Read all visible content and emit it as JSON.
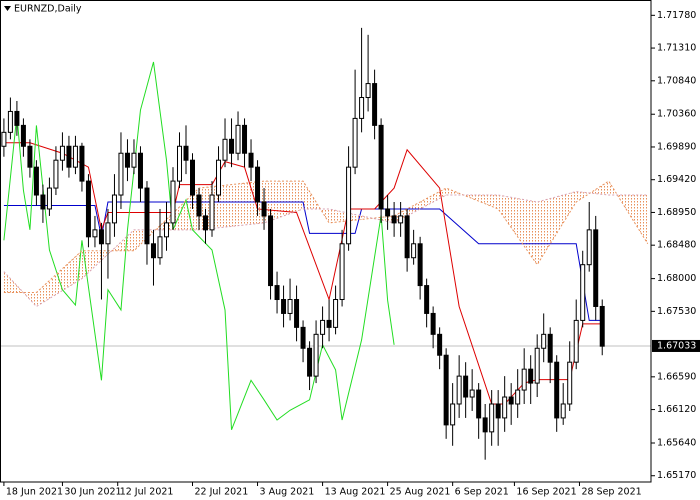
{
  "chart_data": {
    "type": "candlestick",
    "title": "EURNZD,Daily",
    "open": [
      1.699,
      1.701,
      1.704,
      1.702,
      1.699,
      1.696,
      1.692,
      1.69,
      1.693,
      1.697,
      1.699,
      1.696,
      1.699,
      1.694,
      1.686,
      1.687,
      1.685,
      1.688,
      1.692,
      1.698,
      1.696,
      1.698,
      1.693,
      1.685,
      1.683,
      1.686,
      1.688,
      1.694,
      1.699,
      1.697,
      1.692,
      1.689,
      1.687,
      1.692,
      1.697,
      1.7,
      1.698,
      1.702,
      1.698,
      1.696,
      1.691,
      1.689,
      1.679,
      1.677,
      1.675,
      1.677,
      1.673,
      1.67,
      1.666,
      1.672,
      1.674,
      1.673,
      1.677,
      1.685,
      1.696,
      1.703,
      1.706,
      1.708,
      1.702,
      1.69,
      1.689,
      1.688,
      1.689,
      1.683,
      1.685,
      1.679,
      1.675,
      1.672,
      1.669,
      1.659,
      1.662,
      1.666,
      1.663,
      1.664,
      1.66,
      1.658,
      1.662,
      1.66,
      1.663,
      1.662,
      1.664,
      1.667,
      1.665,
      1.67,
      1.672,
      1.668,
      1.66,
      1.662,
      1.668,
      1.674,
      1.682,
      1.687,
      1.676
    ],
    "high": [
      1.703,
      1.706,
      1.7055,
      1.703,
      1.7,
      1.697,
      1.6935,
      1.6945,
      1.699,
      1.701,
      1.7005,
      1.7005,
      1.6995,
      1.695,
      1.689,
      1.688,
      1.69,
      1.695,
      1.701,
      1.7,
      1.7,
      1.699,
      1.694,
      1.687,
      1.69,
      1.691,
      1.696,
      1.701,
      1.702,
      1.698,
      1.693,
      1.69,
      1.694,
      1.699,
      1.703,
      1.703,
      1.704,
      1.703,
      1.7,
      1.697,
      1.693,
      1.69,
      1.681,
      1.679,
      1.68,
      1.679,
      1.674,
      1.671,
      1.674,
      1.676,
      1.677,
      1.679,
      1.687,
      1.699,
      1.71,
      1.716,
      1.715,
      1.71,
      1.703,
      1.692,
      1.691,
      1.691,
      1.69,
      1.687,
      1.686,
      1.68,
      1.676,
      1.673,
      1.67,
      1.665,
      1.669,
      1.668,
      1.667,
      1.665,
      1.662,
      1.664,
      1.664,
      1.666,
      1.665,
      1.667,
      1.67,
      1.669,
      1.672,
      1.675,
      1.673,
      1.669,
      1.665,
      1.671,
      1.677,
      1.684,
      1.691,
      1.689,
      1.677
    ],
    "low": [
      1.6975,
      1.7,
      1.7005,
      1.6975,
      1.6945,
      1.6905,
      1.688,
      1.689,
      1.692,
      1.6955,
      1.6945,
      1.695,
      1.6925,
      1.6845,
      1.6845,
      1.677,
      1.68,
      1.686,
      1.69,
      1.694,
      1.695,
      1.691,
      1.682,
      1.679,
      1.682,
      1.684,
      1.687,
      1.693,
      1.695,
      1.69,
      1.687,
      1.685,
      1.686,
      1.691,
      1.696,
      1.696,
      1.697,
      1.696,
      1.694,
      1.689,
      1.687,
      1.677,
      1.675,
      1.673,
      1.674,
      1.671,
      1.668,
      1.664,
      1.665,
      1.67,
      1.671,
      1.672,
      1.676,
      1.684,
      1.695,
      1.701,
      1.704,
      1.7,
      1.688,
      1.687,
      1.686,
      1.686,
      1.681,
      1.682,
      1.677,
      1.673,
      1.67,
      1.667,
      1.657,
      1.656,
      1.66,
      1.66,
      1.661,
      1.657,
      1.654,
      1.656,
      1.656,
      1.658,
      1.659,
      1.66,
      1.662,
      1.662,
      1.663,
      1.668,
      1.665,
      1.658,
      1.659,
      1.661,
      1.667,
      1.673,
      1.681,
      1.674,
      1.669
    ],
    "close": [
      1.701,
      1.704,
      1.702,
      1.699,
      1.696,
      1.692,
      1.69,
      1.693,
      1.697,
      1.699,
      1.696,
      1.699,
      1.694,
      1.686,
      1.687,
      1.685,
      1.688,
      1.692,
      1.698,
      1.696,
      1.698,
      1.693,
      1.685,
      1.683,
      1.686,
      1.688,
      1.694,
      1.699,
      1.697,
      1.692,
      1.689,
      1.687,
      1.692,
      1.697,
      1.7,
      1.698,
      1.702,
      1.698,
      1.696,
      1.691,
      1.689,
      1.679,
      1.677,
      1.675,
      1.677,
      1.673,
      1.67,
      1.666,
      1.672,
      1.674,
      1.673,
      1.677,
      1.685,
      1.696,
      1.703,
      1.706,
      1.708,
      1.702,
      1.69,
      1.689,
      1.688,
      1.689,
      1.683,
      1.685,
      1.679,
      1.675,
      1.672,
      1.669,
      1.659,
      1.662,
      1.666,
      1.663,
      1.664,
      1.66,
      1.658,
      1.662,
      1.66,
      1.663,
      1.662,
      1.664,
      1.667,
      1.665,
      1.67,
      1.672,
      1.668,
      1.66,
      1.662,
      1.668,
      1.674,
      1.682,
      1.687,
      1.676,
      1.6703
    ],
    "bull_color": "#ffffff",
    "bear_color": "#000000",
    "xlim": [
      -0.6,
      99.5
    ],
    "ylim": [
      1.6508,
      1.72
    ],
    "xticks": [
      {
        "value": 0,
        "label": "18 Jun 2021"
      },
      {
        "value": 9,
        "label": "30 Jun 2021"
      },
      {
        "value": 17.5,
        "label": "12 Jul 2021"
      },
      {
        "value": 29,
        "label": "22 Jul 2021"
      },
      {
        "value": 39,
        "label": "3 Aug 2021"
      },
      {
        "value": 49,
        "label": "13 Aug 2021"
      },
      {
        "value": 59,
        "label": "25 Aug 2021"
      },
      {
        "value": 69,
        "label": "6 Sep 2021"
      },
      {
        "value": 78.5,
        "label": "16 Sep 2021"
      },
      {
        "value": 88.5,
        "label": "28 Sep 2021"
      }
    ],
    "yticks": [
      {
        "value": 1.7178,
        "label": "1.71780"
      },
      {
        "value": 1.7131,
        "label": "1.71310"
      },
      {
        "value": 1.7084,
        "label": "1.70840"
      },
      {
        "value": 1.7036,
        "label": "1.70360"
      },
      {
        "value": 1.6989,
        "label": "1.69890"
      },
      {
        "value": 1.6942,
        "label": "1.69420"
      },
      {
        "value": 1.6895,
        "label": "1.68950"
      },
      {
        "value": 1.6848,
        "label": "1.68480"
      },
      {
        "value": 1.68,
        "label": "1.68000"
      },
      {
        "value": 1.6753,
        "label": "1.67530"
      },
      {
        "value": 1.6659,
        "label": "1.66590"
      },
      {
        "value": 1.6612,
        "label": "1.66120"
      },
      {
        "value": 1.6564,
        "label": "1.65640"
      },
      {
        "value": 1.6517,
        "label": "1.65170"
      }
    ],
    "last_price": {
      "value": 1.67033,
      "label": "1.67033"
    },
    "cloud_color": "#e8905a",
    "overlays": [
      {
        "color": "#0000cc",
        "style": "solid",
        "x": [
          0,
          14,
          15,
          16,
          46,
          47,
          54,
          55,
          67,
          73,
          88,
          90,
          92
        ],
        "values": [
          1.6905,
          1.6905,
          1.686,
          1.691,
          1.691,
          1.6865,
          1.6865,
          1.69,
          1.69,
          1.685,
          1.685,
          1.674,
          1.674
        ]
      },
      {
        "color": "#dd0000",
        "style": "solid",
        "x": [
          0,
          4,
          9,
          13,
          15,
          16,
          26,
          27,
          32,
          34,
          37,
          39,
          45,
          50,
          53,
          57,
          60,
          62,
          67,
          70,
          75,
          77,
          80,
          82,
          87,
          89,
          92
        ],
        "values": [
          1.6995,
          1.6995,
          1.698,
          1.696,
          1.687,
          1.6895,
          1.6895,
          1.6935,
          1.6935,
          1.6968,
          1.696,
          1.69,
          1.6895,
          1.677,
          1.69,
          1.69,
          1.693,
          1.6985,
          1.693,
          1.676,
          1.662,
          1.662,
          1.665,
          1.6655,
          1.6655,
          1.6735,
          1.6735
        ]
      },
      {
        "color": "#22dd22",
        "style": "solid",
        "x": [
          0,
          2,
          3,
          4,
          5,
          7,
          9,
          11,
          12,
          15,
          16,
          18,
          19,
          21,
          23,
          25,
          26,
          28,
          29,
          32,
          34,
          35,
          38,
          40,
          42,
          44,
          47,
          49,
          51,
          52,
          55,
          58,
          59,
          60
        ],
        "values": [
          1.6855,
          1.7035,
          1.6927,
          1.687,
          1.702,
          1.6841,
          1.6784,
          1.6762,
          1.6855,
          1.6654,
          1.6784,
          1.6755,
          1.687,
          1.7042,
          1.7111,
          1.697,
          1.687,
          1.6913,
          1.687,
          1.6841,
          1.6755,
          1.6583,
          1.6654,
          1.6626,
          1.6597,
          1.6611,
          1.6626,
          1.6705,
          1.6669,
          1.6597,
          1.6712,
          1.6891,
          1.6769,
          1.6705
        ]
      },
      {
        "color": "#e8905a",
        "style": "dotted",
        "x": [
          0,
          5,
          12,
          20,
          30,
          40,
          46,
          50,
          60,
          68,
          76,
          82,
          88,
          93,
          99
        ],
        "values": [
          1.678,
          1.678,
          1.684,
          1.684,
          1.693,
          1.694,
          1.694,
          1.688,
          1.689,
          1.693,
          1.69,
          1.682,
          1.691,
          1.694,
          1.685
        ]
      },
      {
        "color": "#d8a0b0",
        "style": "dotted",
        "x": [
          0,
          5,
          12,
          20,
          30,
          40,
          46,
          50,
          60,
          68,
          76,
          82,
          88,
          93,
          99
        ],
        "values": [
          1.681,
          1.676,
          1.68,
          1.687,
          1.687,
          1.688,
          1.69,
          1.69,
          1.688,
          1.692,
          1.692,
          1.691,
          1.6925,
          1.692,
          1.692
        ]
      }
    ]
  }
}
